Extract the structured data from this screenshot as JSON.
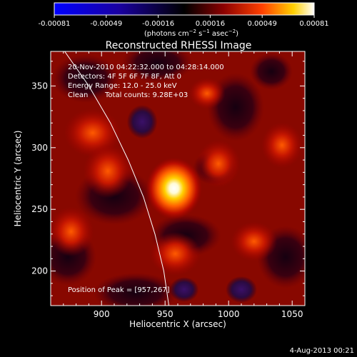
{
  "colorbar": {
    "ticks": [
      "-0.00081",
      "-0.00049",
      "-0.00016",
      "0.00016",
      "0.00049",
      "0.00081"
    ],
    "unit_main": "(photons cm",
    "unit_exp1": "−2",
    "unit_mid": " s",
    "unit_exp2": "−1",
    "unit_mid2": " asec",
    "unit_exp3": "−2",
    "unit_end": ")",
    "colors": [
      "#0000ff",
      "#1a00a0",
      "#000000",
      "#8a0000",
      "#ff4000",
      "#ffd000",
      "#ffffff"
    ]
  },
  "info": {
    "time_range": "20-Nov-2010 04:22:32.000 to 04:28:14.000",
    "detectors": "Detectors: 4F 5F 6F 7F 8F, Att 0",
    "energy": "Energy Range: 12.0 - 25.0 keV",
    "clean_label": "Clean",
    "total_counts": "Total counts: 9.28E+03",
    "peak": "Position of Peak = [957,267]"
  },
  "footer": {
    "date": "4-Aug-2013 00:21"
  },
  "chart_data": {
    "type": "heatmap",
    "title": "Reconstructed RHESSI Image",
    "xlabel": "Heliocentric X (arcsec)",
    "ylabel": "Heliocentric Y (arcsec)",
    "xlim": [
      860,
      1060
    ],
    "ylim": [
      172,
      378
    ],
    "x_ticks": [
      900,
      950,
      1000,
      1050
    ],
    "y_ticks": [
      200,
      250,
      300,
      350
    ],
    "value_range": [
      -0.00081,
      0.00081
    ],
    "peak": [
      957,
      267
    ],
    "limb_curve": [
      [
        871,
        378
      ],
      [
        890,
        350
      ],
      [
        907,
        320
      ],
      [
        921,
        290
      ],
      [
        933,
        260
      ],
      [
        942,
        230
      ],
      [
        949,
        200
      ],
      [
        953,
        172
      ]
    ],
    "sources": [
      {
        "x": 957,
        "y": 267,
        "value": 0.00081
      },
      {
        "x": 893,
        "y": 312,
        "value": 0.00038
      },
      {
        "x": 905,
        "y": 281,
        "value": 0.0003
      },
      {
        "x": 958,
        "y": 214,
        "value": 0.00032
      },
      {
        "x": 992,
        "y": 287,
        "value": 0.00024
      },
      {
        "x": 1020,
        "y": 224,
        "value": 0.00027
      },
      {
        "x": 1042,
        "y": 302,
        "value": 0.00022
      },
      {
        "x": 983,
        "y": 344,
        "value": 0.00017
      },
      {
        "x": 876,
        "y": 232,
        "value": 0.00026
      },
      {
        "x": 1010,
        "y": 185,
        "value": -0.00012
      },
      {
        "x": 932,
        "y": 321,
        "value": -0.00011
      },
      {
        "x": 965,
        "y": 185,
        "value": -9e-05
      }
    ]
  }
}
